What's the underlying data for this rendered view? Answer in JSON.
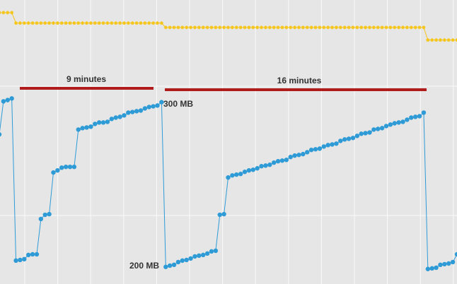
{
  "chart_data": {
    "type": "line",
    "ylim": [
      189,
      365
    ],
    "grid": true,
    "annotations": [
      "9 minutes",
      "16 minutes",
      "300 MB",
      "200 MB"
    ],
    "series": [
      {
        "color": "#f5c518",
        "values": [
          357.2,
          357.2,
          357.2,
          357.2,
          350.7,
          350.7,
          350.7,
          350.7,
          350.7,
          350.7,
          350.7,
          350.7,
          350.7,
          350.7,
          350.7,
          350.7,
          350.7,
          350.7,
          350.7,
          350.7,
          350.7,
          350.7,
          350.7,
          350.7,
          350.7,
          350.7,
          350.7,
          350.7,
          350.7,
          350.7,
          350.7,
          350.7,
          350.7,
          350.7,
          350.7,
          350.7,
          350.7,
          350.7,
          350.7,
          350.7,
          348,
          348,
          348,
          348,
          348,
          348,
          348,
          348,
          348,
          348,
          348,
          348,
          348,
          348,
          348,
          348,
          348,
          348,
          348,
          348,
          348,
          348,
          348,
          348,
          348,
          348,
          348,
          348,
          348,
          348,
          348,
          348,
          348,
          348,
          348,
          348,
          348,
          348,
          348,
          348,
          348,
          348,
          348,
          348,
          348,
          348,
          348,
          348,
          348,
          348,
          348,
          348,
          348,
          348,
          348,
          348,
          348,
          348,
          348,
          348,
          348,
          348,
          348,
          340.2,
          340.2,
          340.2,
          340.2,
          340.2,
          340.2,
          340.2,
          340.2
        ]
      },
      {
        "color": "#2e9bd6",
        "values": [
          281.7,
          302.2,
          303,
          304,
          203.5,
          203.9,
          204.4,
          207,
          207.4,
          207.4,
          229.3,
          231.9,
          232.3,
          258.1,
          259.4,
          261.1,
          261.6,
          261.6,
          261.6,
          284.7,
          285.6,
          286,
          286.5,
          288.2,
          289.1,
          289.1,
          289.5,
          291.3,
          292.1,
          292.6,
          293.5,
          295.2,
          295.6,
          296.1,
          296.5,
          297.8,
          298.7,
          299.1,
          299.6,
          301.7,
          199.6,
          200.4,
          200.9,
          202.6,
          203.5,
          203.9,
          204.8,
          206.1,
          206.6,
          207,
          207.9,
          209.2,
          209.6,
          231.9,
          232.3,
          255,
          256.3,
          256.8,
          257.2,
          258.5,
          259.4,
          259.8,
          260.7,
          262,
          262.4,
          262.9,
          264.2,
          265.1,
          265.5,
          265.9,
          267.7,
          268.6,
          269,
          269.5,
          270.7,
          272.1,
          272.5,
          272.9,
          274.2,
          275.1,
          275.5,
          276,
          277.7,
          278.6,
          279,
          279.5,
          280.8,
          282.1,
          282.5,
          282.9,
          284.7,
          285.1,
          285.6,
          286.9,
          287.8,
          288.6,
          289.1,
          289.5,
          290.8,
          292.1,
          292.6,
          293,
          295.2,
          198.3,
          198.7,
          199.1,
          200.9,
          201.3,
          201.7,
          202.6,
          207.4
        ]
      }
    ]
  }
}
